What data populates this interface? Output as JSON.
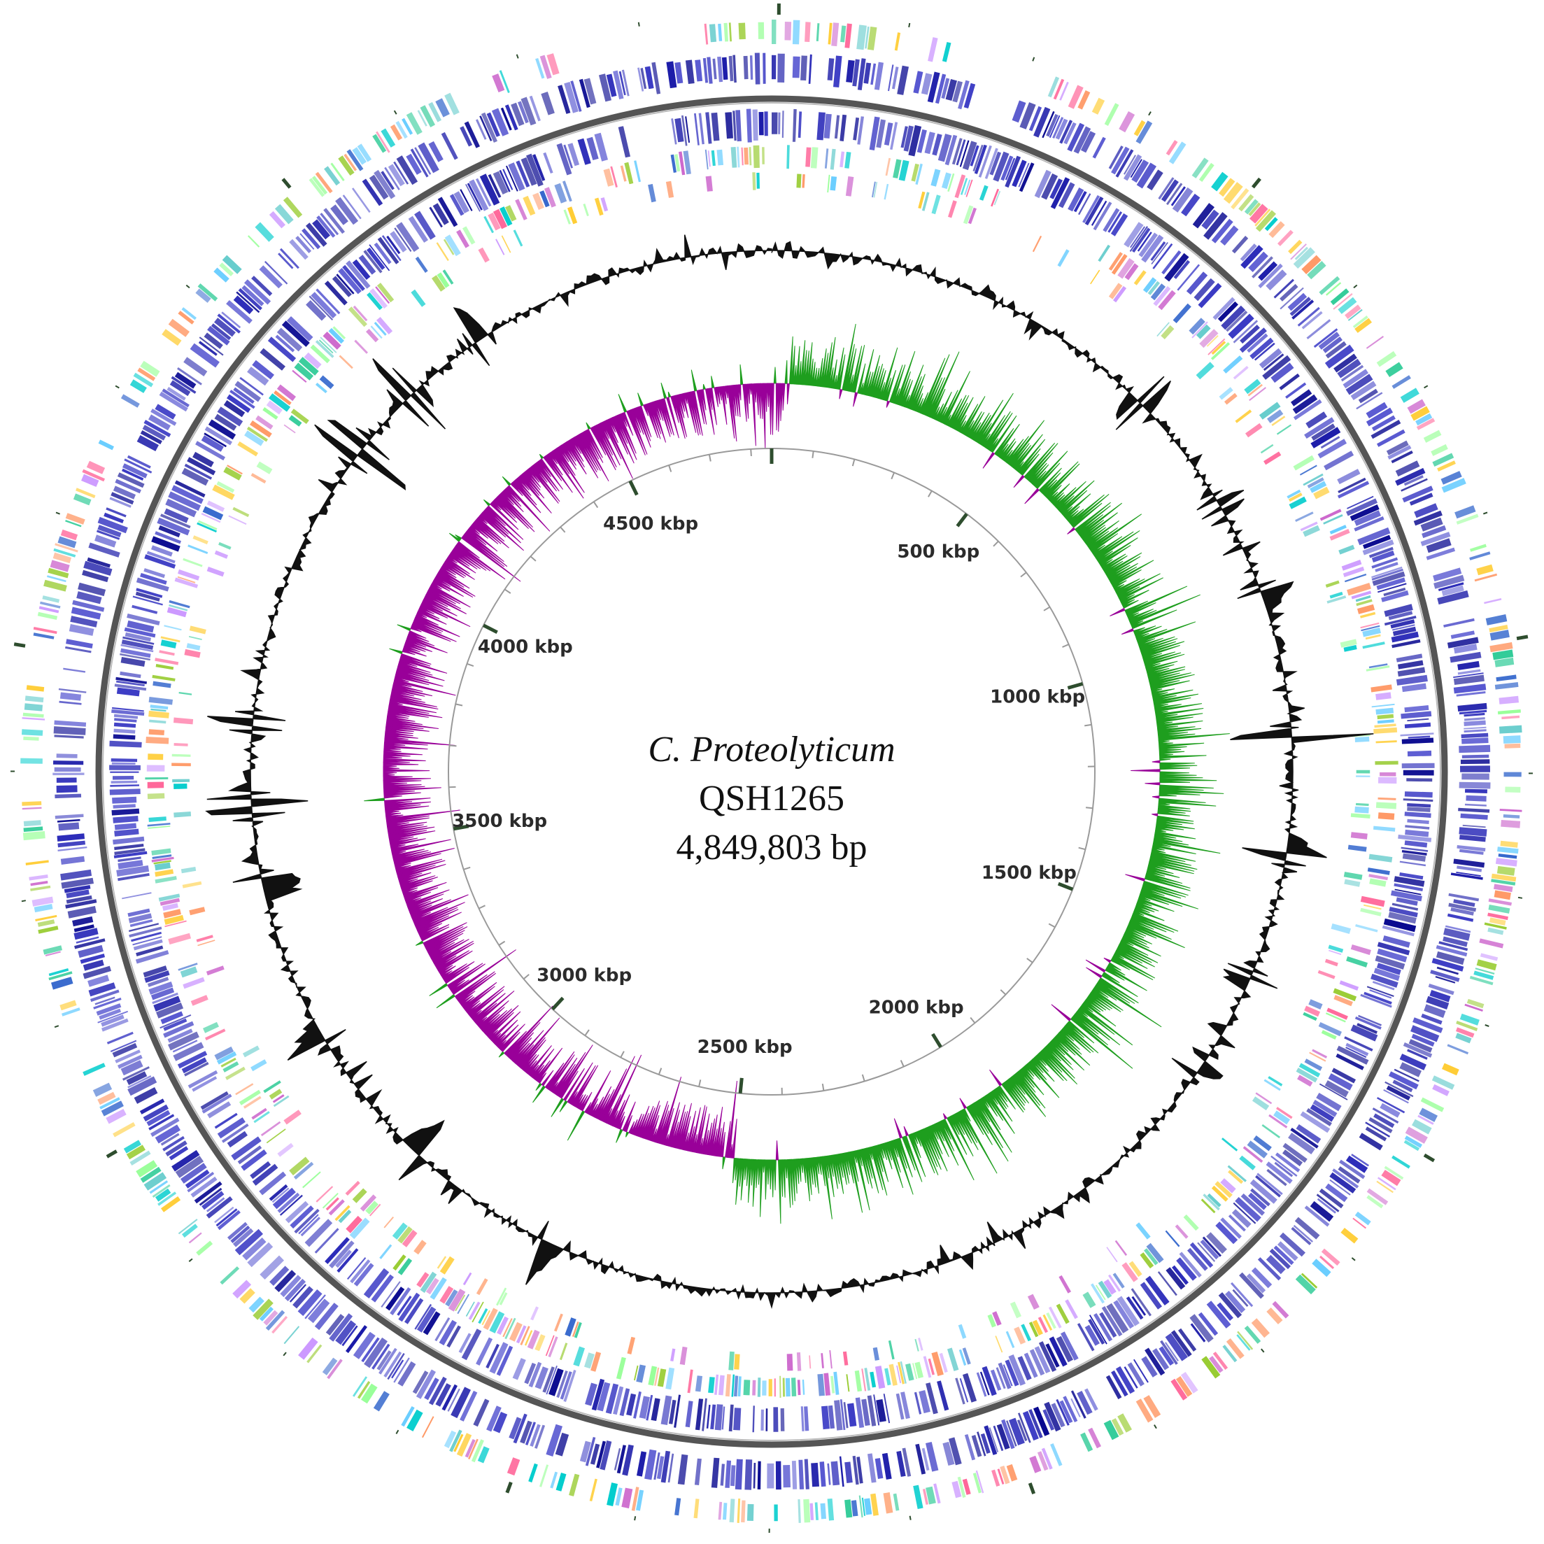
{
  "genome": {
    "organism": "C. Proteolyticum",
    "strain": "QSH1265",
    "length_label": "4,849,803 bp",
    "length_bp": 4849803
  },
  "scale": {
    "unit": "kbp",
    "labels": [
      {
        "kbp": 500,
        "text": "500 kbp"
      },
      {
        "kbp": 1000,
        "text": "1000 kbp"
      },
      {
        "kbp": 1500,
        "text": "1500 kbp"
      },
      {
        "kbp": 2000,
        "text": "2000 kbp"
      },
      {
        "kbp": 2500,
        "text": "2500 kbp"
      },
      {
        "kbp": 3000,
        "text": "3000 kbp"
      },
      {
        "kbp": 3500,
        "text": "3500 kbp"
      },
      {
        "kbp": 4000,
        "text": "4000 kbp"
      },
      {
        "kbp": 4500,
        "text": "4500 kbp"
      }
    ]
  },
  "tracks": {
    "cds_colors": [
      "#1a1aa8",
      "#2a2ab8",
      "#3b3bc4",
      "#0a0a90",
      "#5555d0"
    ],
    "cog_colors": [
      "#33cc99",
      "#cc66cc",
      "#66ccff",
      "#99cc33",
      "#ff9966",
      "#66cccc",
      "#cc99ff",
      "#ffcc33",
      "#3366cc",
      "#ff6699",
      "#99ff99",
      "#00cccc"
    ],
    "gc_content_color": "#111111",
    "gc_skew_positive_color": "#1e9e1e",
    "gc_skew_negative_color": "#990099",
    "backbone_color": "#555555",
    "tick_color": "#2e4d2e"
  }
}
